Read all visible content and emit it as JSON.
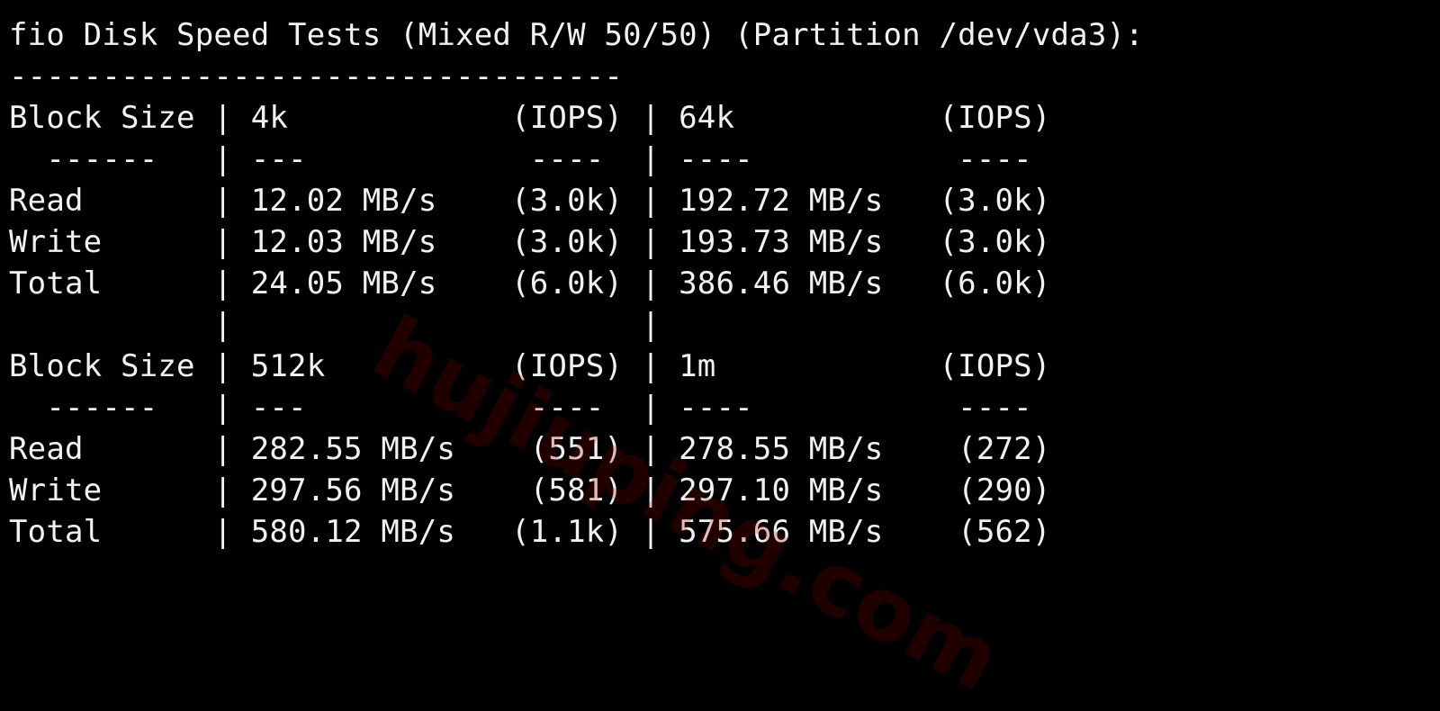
{
  "terminal": {
    "lines": [
      "fio Disk Speed Tests (Mixed R/W 50/50) (Partition /dev/vda3):",
      "---------------------------------",
      "Block Size | 4k            (IOPS) | 64k           (IOPS)",
      "  ------   | ---            ----  | ----           ----",
      "Read       | 12.02 MB/s    (3.0k) | 192.72 MB/s   (3.0k)",
      "Write      | 12.03 MB/s    (3.0k) | 193.73 MB/s   (3.0k)",
      "Total      | 24.05 MB/s    (6.0k) | 386.46 MB/s   (6.0k)",
      "           |                      |",
      "Block Size | 512k          (IOPS) | 1m            (IOPS)",
      "  ------   | ---            ----  | ----           ----",
      "Read       | 282.55 MB/s    (551) | 278.55 MB/s    (272)",
      "Write      | 297.56 MB/s    (581) | 297.10 MB/s    (290)",
      "Total      | 580.12 MB/s   (1.1k) | 575.66 MB/s    (562)"
    ]
  },
  "watermark": {
    "text": "hujiuping.com"
  },
  "colors": {
    "background": "#000000",
    "foreground": "#f2f2f2",
    "watermark": "#960000"
  }
}
